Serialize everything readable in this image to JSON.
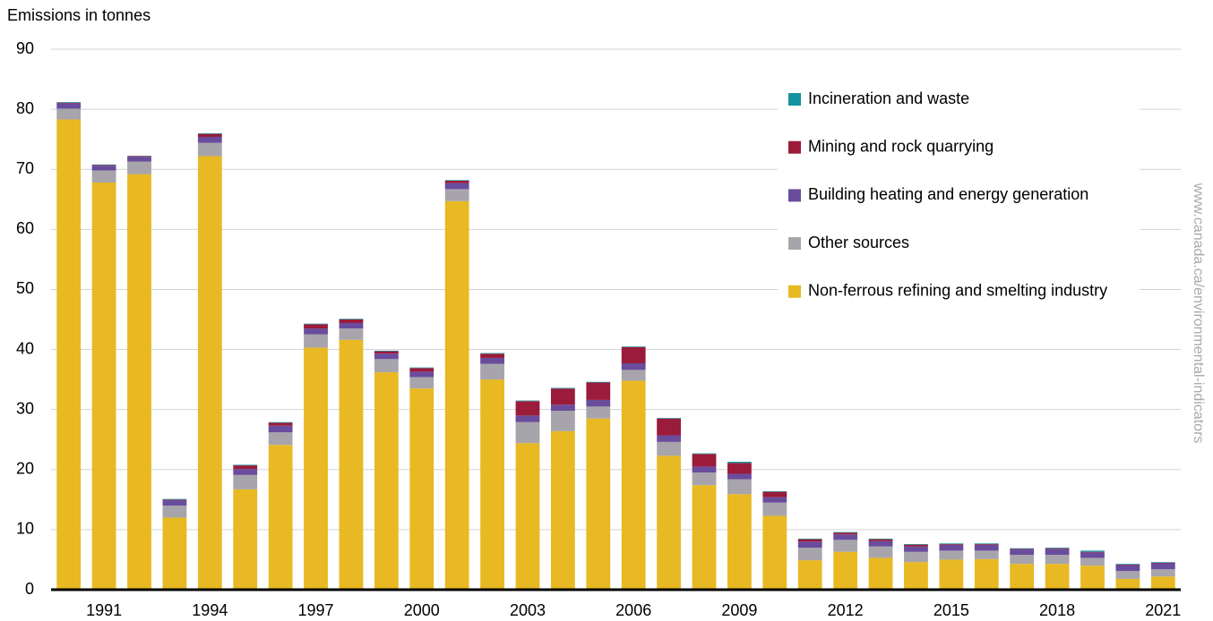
{
  "chart_data": {
    "type": "stacked_bar",
    "y_axis_label": "Emissions in tonnes",
    "source": "www.canada.ca/environmental-indicators",
    "categories": [
      null,
      "1991",
      null,
      null,
      "1994",
      null,
      null,
      "1997",
      null,
      null,
      "2000",
      null,
      null,
      "2003",
      null,
      null,
      "2006",
      null,
      null,
      "2009",
      null,
      null,
      "2012",
      null,
      null,
      "2015",
      null,
      null,
      "2018",
      null,
      null,
      "2021"
    ],
    "series": [
      {
        "name": "Non-ferrous refining and smelting industry",
        "color": "#e8b923",
        "values": [
          78.3,
          67.8,
          69.2,
          12.0,
          72.2,
          16.7,
          24.1,
          40.3,
          41.6,
          36.2,
          33.5,
          64.7,
          35.0,
          24.4,
          26.4,
          28.5,
          34.8,
          22.3,
          17.4,
          15.9,
          12.3,
          4.9,
          6.3,
          5.3,
          4.6,
          5.0,
          5.1,
          4.3,
          4.3,
          4.0,
          1.8,
          2.2
        ]
      },
      {
        "name": "Other sources",
        "color": "#a7a5ab",
        "values": [
          1.8,
          2.0,
          2.1,
          2.0,
          2.2,
          2.4,
          2.1,
          2.2,
          1.9,
          2.2,
          1.9,
          2.0,
          2.6,
          3.5,
          3.4,
          2.0,
          1.8,
          2.3,
          2.1,
          2.5,
          2.2,
          2.1,
          2.0,
          1.9,
          1.7,
          1.5,
          1.4,
          1.5,
          1.5,
          1.3,
          1.3,
          1.2
        ]
      },
      {
        "name": "Building heating and energy generation",
        "color": "#6a4c9c",
        "values": [
          0.9,
          0.8,
          0.8,
          0.9,
          1.0,
          1.0,
          1.1,
          1.0,
          0.9,
          0.9,
          0.9,
          1.0,
          1.0,
          1.1,
          1.0,
          1.1,
          1.1,
          1.1,
          1.0,
          0.9,
          0.9,
          1.0,
          0.9,
          0.9,
          0.9,
          1.0,
          1.0,
          0.9,
          1.0,
          0.9,
          1.0,
          1.0
        ]
      },
      {
        "name": "Mining and rock quarrying",
        "color": "#9b1b3a",
        "values": [
          0.1,
          0.1,
          0.1,
          0.1,
          0.5,
          0.6,
          0.5,
          0.7,
          0.6,
          0.4,
          0.6,
          0.4,
          0.7,
          2.4,
          2.7,
          2.9,
          2.7,
          2.8,
          2.1,
          1.8,
          0.9,
          0.4,
          0.3,
          0.3,
          0.3,
          0.1,
          0.1,
          0.1,
          0.1,
          0.1,
          0.1,
          0.1
        ]
      },
      {
        "name": "Incineration and waste",
        "color": "#13939f",
        "values": [
          0.1,
          0.1,
          0.05,
          0.1,
          0.1,
          0.1,
          0.1,
          0.1,
          0.1,
          0.1,
          0.1,
          0.1,
          0.1,
          0.1,
          0.1,
          0.1,
          0.1,
          0.1,
          0.1,
          0.2,
          0.1,
          0.1,
          0.1,
          0.1,
          0.1,
          0.1,
          0.1,
          0.1,
          0.1,
          0.2,
          0.1,
          0.1
        ]
      }
    ],
    "ylim": [
      0,
      90
    ],
    "yticks": [
      0,
      10,
      20,
      30,
      40,
      50,
      60,
      70,
      80,
      90
    ],
    "grid": true
  }
}
